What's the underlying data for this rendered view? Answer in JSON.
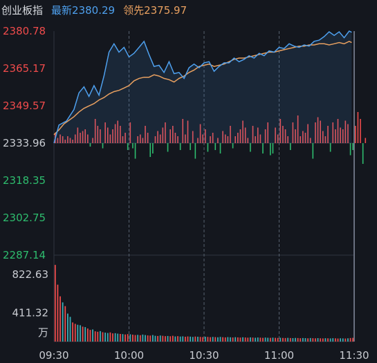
{
  "header": {
    "title": "创业板指",
    "last_label": "最新",
    "last_value": "2380.29",
    "lead_label": "领先",
    "lead_value": "2375.97"
  },
  "colors": {
    "background": "#14171e",
    "grid": "#2f3440",
    "price_line": "#4ea0ee",
    "leading_line": "#e8a060",
    "up": "#ef4b4b",
    "down": "#2ebd6e",
    "volume_alt": "#3ab0b8",
    "axis_text": "#c9ccd2"
  },
  "chart_data": {
    "type": "line",
    "price_axis": {
      "ticks": [
        "2380.78",
        "2365.17",
        "2349.57",
        "2333.96",
        "2318.35",
        "2302.75",
        "2287.14"
      ],
      "ylim": [
        2287.14,
        2380.78
      ],
      "reference": 2333.96,
      "tick_colors": [
        "#ef4b4b",
        "#ef4b4b",
        "#ef4b4b",
        "#c9ccd2",
        "#2ebd6e",
        "#2ebd6e",
        "#2ebd6e"
      ]
    },
    "volume_axis": {
      "ticks": [
        "822.63",
        "411.32"
      ],
      "ylim": [
        0,
        822.63
      ],
      "unit": "万"
    },
    "time_axis": {
      "ticks": [
        "09:30",
        "10:00",
        "10:30",
        "11:00",
        "11:30"
      ],
      "total_minutes": 120
    },
    "series": [
      {
        "role": "price",
        "points": [
          [
            0,
            2333.96
          ],
          [
            2,
            2341.5
          ],
          [
            5,
            2343.2
          ],
          [
            8,
            2348.0
          ],
          [
            10,
            2355.0
          ],
          [
            12,
            2357.5
          ],
          [
            14,
            2353.5
          ],
          [
            16,
            2358.0
          ],
          [
            18,
            2354.0
          ],
          [
            20,
            2362.0
          ],
          [
            22,
            2372.0
          ],
          [
            24,
            2375.5
          ],
          [
            26,
            2372.0
          ],
          [
            28,
            2374.0
          ],
          [
            30,
            2370.0
          ],
          [
            32,
            2371.5
          ],
          [
            34,
            2374.0
          ],
          [
            36,
            2376.5
          ],
          [
            38,
            2371.0
          ],
          [
            40,
            2366.0
          ],
          [
            42,
            2366.5
          ],
          [
            44,
            2363.5
          ],
          [
            46,
            2368.0
          ],
          [
            48,
            2363.0
          ],
          [
            50,
            2363.5
          ],
          [
            52,
            2361.0
          ],
          [
            54,
            2365.5
          ],
          [
            56,
            2367.0
          ],
          [
            58,
            2365.5
          ],
          [
            60,
            2367.5
          ],
          [
            62,
            2368.0
          ],
          [
            64,
            2364.0
          ],
          [
            66,
            2366.0
          ],
          [
            68,
            2367.5
          ],
          [
            70,
            2367.5
          ],
          [
            72,
            2369.5
          ],
          [
            74,
            2368.0
          ],
          [
            76,
            2369.0
          ],
          [
            78,
            2370.5
          ],
          [
            80,
            2369.5
          ],
          [
            82,
            2371.5
          ],
          [
            84,
            2370.5
          ],
          [
            86,
            2372.5
          ],
          [
            88,
            2372.0
          ],
          [
            90,
            2374.0
          ],
          [
            92,
            2373.5
          ],
          [
            94,
            2375.5
          ],
          [
            96,
            2374.5
          ],
          [
            98,
            2374.0
          ],
          [
            100,
            2375.0
          ],
          [
            102,
            2374.5
          ],
          [
            104,
            2376.5
          ],
          [
            106,
            2377.0
          ],
          [
            108,
            2378.5
          ],
          [
            110,
            2380.5
          ],
          [
            112,
            2379.0
          ],
          [
            114,
            2380.5
          ],
          [
            116,
            2378.0
          ],
          [
            118,
            2380.78
          ],
          [
            119,
            2380.29
          ]
        ]
      },
      {
        "role": "leading",
        "points": [
          [
            0,
            2337.5
          ],
          [
            2,
            2339.5
          ],
          [
            4,
            2342.0
          ],
          [
            6,
            2343.5
          ],
          [
            8,
            2345.0
          ],
          [
            10,
            2347.0
          ],
          [
            12,
            2348.5
          ],
          [
            14,
            2349.5
          ],
          [
            16,
            2350.5
          ],
          [
            18,
            2352.0
          ],
          [
            20,
            2353.0
          ],
          [
            22,
            2354.5
          ],
          [
            24,
            2355.5
          ],
          [
            26,
            2356.0
          ],
          [
            28,
            2357.0
          ],
          [
            30,
            2358.0
          ],
          [
            32,
            2360.0
          ],
          [
            34,
            2361.0
          ],
          [
            36,
            2361.5
          ],
          [
            38,
            2361.5
          ],
          [
            40,
            2362.5
          ],
          [
            42,
            2362.0
          ],
          [
            44,
            2361.0
          ],
          [
            46,
            2360.5
          ],
          [
            48,
            2359.5
          ],
          [
            50,
            2361.0
          ],
          [
            52,
            2362.0
          ],
          [
            54,
            2363.5
          ],
          [
            56,
            2364.5
          ],
          [
            58,
            2366.0
          ],
          [
            60,
            2366.5
          ],
          [
            62,
            2367.0
          ],
          [
            64,
            2366.0
          ],
          [
            66,
            2366.5
          ],
          [
            68,
            2367.0
          ],
          [
            70,
            2368.0
          ],
          [
            72,
            2369.0
          ],
          [
            74,
            2369.5
          ],
          [
            76,
            2369.5
          ],
          [
            78,
            2370.0
          ],
          [
            80,
            2370.5
          ],
          [
            82,
            2371.0
          ],
          [
            84,
            2371.5
          ],
          [
            86,
            2372.0
          ],
          [
            88,
            2372.0
          ],
          [
            90,
            2372.5
          ],
          [
            92,
            2373.0
          ],
          [
            94,
            2373.5
          ],
          [
            96,
            2374.0
          ],
          [
            98,
            2374.5
          ],
          [
            100,
            2374.5
          ],
          [
            102,
            2375.0
          ],
          [
            104,
            2375.0
          ],
          [
            106,
            2375.5
          ],
          [
            108,
            2375.5
          ],
          [
            110,
            2375.0
          ],
          [
            112,
            2375.5
          ],
          [
            114,
            2376.0
          ],
          [
            116,
            2375.5
          ],
          [
            118,
            2376.5
          ],
          [
            119,
            2375.97
          ]
        ]
      }
    ],
    "ratio_bars": [
      6,
      3,
      5,
      4,
      2,
      4,
      3,
      2,
      5,
      9,
      6,
      7,
      8,
      5,
      -2,
      3,
      14,
      10,
      8,
      -3,
      12,
      9,
      5,
      8,
      11,
      13,
      10,
      4,
      6,
      -4,
      12,
      -3,
      -9,
      4,
      5,
      3,
      10,
      6,
      -8,
      -6,
      4,
      7,
      5,
      9,
      12,
      -5,
      8,
      10,
      6,
      4,
      -4,
      14,
      5,
      13,
      -4,
      7,
      -9,
      3,
      11,
      5,
      8,
      -5,
      4,
      6,
      -4,
      3,
      -6,
      7,
      5,
      4,
      10,
      -3,
      4,
      6,
      8,
      13,
      9,
      3,
      -5,
      10,
      4,
      9,
      5,
      -6,
      8,
      12,
      -7,
      -6,
      9,
      5,
      14,
      10,
      8,
      4,
      -4,
      12,
      8,
      16,
      4,
      7,
      6,
      11,
      3,
      -9,
      12,
      15,
      13,
      7,
      4,
      10,
      -5,
      12,
      8,
      14,
      9,
      8,
      13,
      11,
      -7,
      -4,
      10,
      18,
      14,
      -12,
      3
    ],
    "volume_bars": [
      822,
      610,
      485,
      420,
      380,
      300,
      265,
      205,
      190,
      180,
      175,
      160,
      155,
      140,
      125,
      130,
      110,
      105,
      112,
      100,
      96,
      92,
      98,
      88,
      90,
      85,
      82,
      80,
      76,
      80,
      78,
      74,
      70,
      72,
      68,
      75,
      70,
      66,
      64,
      70,
      62,
      60,
      65,
      62,
      58,
      60,
      57,
      62,
      55,
      58,
      54,
      56,
      52,
      55,
      53,
      50,
      54,
      52,
      50,
      48,
      52,
      50,
      47,
      50,
      48,
      46,
      50,
      47,
      45,
      48,
      46,
      44,
      47,
      45,
      43,
      46,
      44,
      42,
      45,
      43,
      41,
      44,
      42,
      40,
      43,
      41,
      40,
      42,
      40,
      39,
      41,
      39,
      38,
      40,
      38,
      37,
      39,
      38,
      36,
      38,
      37,
      35,
      38,
      36,
      35,
      37,
      35,
      34,
      36,
      35,
      34,
      36,
      35,
      33,
      35,
      34,
      33,
      35,
      38,
      40
    ]
  }
}
